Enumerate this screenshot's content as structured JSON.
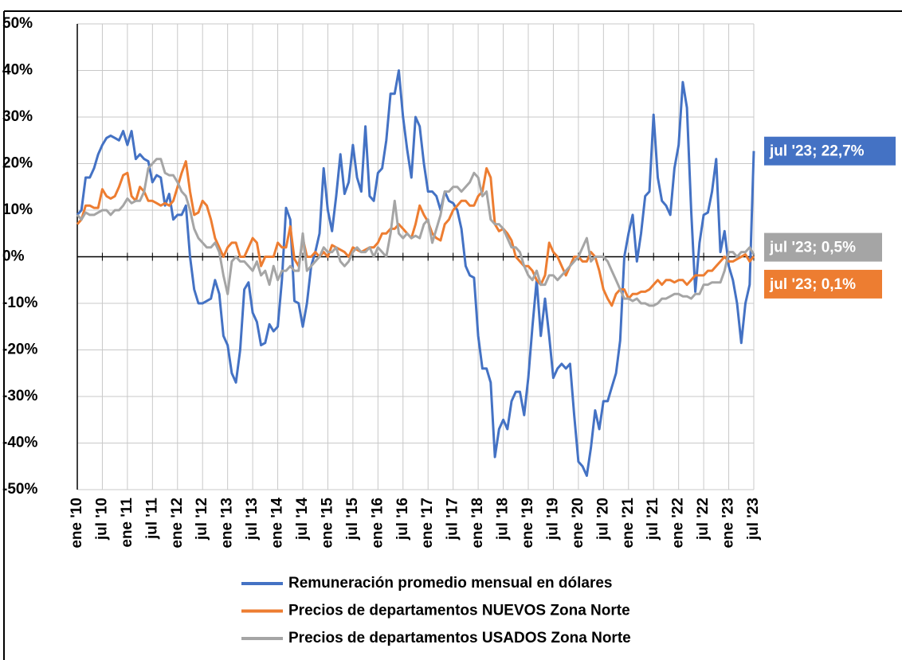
{
  "chart_data": {
    "type": "line",
    "categories": [
      "ene '10",
      null,
      null,
      null,
      null,
      null,
      "jul '10",
      null,
      null,
      null,
      null,
      null,
      "ene '11",
      null,
      null,
      null,
      null,
      null,
      "jul '11",
      null,
      null,
      null,
      null,
      null,
      "ene '12",
      null,
      null,
      null,
      null,
      null,
      "jul '12",
      null,
      null,
      null,
      null,
      null,
      "ene '13",
      null,
      null,
      null,
      null,
      null,
      "jul '13",
      null,
      null,
      null,
      null,
      null,
      "ene '14",
      null,
      null,
      null,
      null,
      null,
      "jul '14",
      null,
      null,
      null,
      null,
      null,
      "ene '15",
      null,
      null,
      null,
      null,
      null,
      "jul '15",
      null,
      null,
      null,
      null,
      null,
      "ene '16",
      null,
      null,
      null,
      null,
      null,
      "jul '16",
      null,
      null,
      null,
      null,
      null,
      "ene '17",
      null,
      null,
      null,
      null,
      null,
      "jul '17",
      null,
      null,
      null,
      null,
      null,
      "ene '18",
      null,
      null,
      null,
      null,
      null,
      "jul '18",
      null,
      null,
      null,
      null,
      null,
      "ene '19",
      null,
      null,
      null,
      null,
      null,
      "jul '19",
      null,
      null,
      null,
      null,
      null,
      "ene '20",
      null,
      null,
      null,
      null,
      null,
      "jul '20",
      null,
      null,
      null,
      null,
      null,
      "ene '21",
      null,
      null,
      null,
      null,
      null,
      "jul '21",
      null,
      null,
      null,
      null,
      null,
      "ene '22",
      null,
      null,
      null,
      null,
      null,
      "jul '22",
      null,
      null,
      null,
      null,
      null,
      "ene '23",
      null,
      null,
      null,
      null,
      null,
      "jul '23"
    ],
    "series": [
      {
        "name": "Remuneración promedio mensual en dólares",
        "color": "#4472c4",
        "label": "jul '23; 22,7%",
        "values": [
          9,
          10,
          17,
          17,
          19,
          22,
          24,
          25.5,
          26,
          25.5,
          25,
          27,
          24,
          27,
          21,
          22,
          21,
          20.5,
          16,
          17.5,
          17,
          11,
          13.5,
          8,
          9,
          9,
          11,
          0,
          -7,
          -10,
          -10,
          -9.5,
          -9,
          -5,
          -8,
          -17,
          -19,
          -25,
          -27,
          -20,
          -7,
          -5.5,
          -12,
          -14,
          -19,
          -18.5,
          -14.5,
          -16,
          -15,
          -5,
          10.5,
          8,
          -9.5,
          -10,
          -15,
          -10,
          -2,
          1,
          5,
          19,
          10,
          5.5,
          13,
          22,
          13.5,
          16,
          24,
          17,
          14,
          28,
          13,
          12,
          18,
          19,
          25,
          35,
          35,
          40,
          30,
          23,
          17,
          30,
          28,
          20,
          14,
          14,
          13,
          10,
          14,
          12,
          11.5,
          10,
          6,
          -2,
          -4,
          -4.5,
          -17,
          -24,
          -24,
          -27,
          -43,
          -37,
          -35,
          -37,
          -31,
          -29,
          -29,
          -34,
          -26,
          -15,
          -5,
          -17,
          -9,
          -17,
          -26,
          -24,
          -23,
          -24,
          -23,
          -34,
          -44,
          -45,
          -47,
          -41,
          -33,
          -37,
          -31,
          -31,
          -28,
          -25,
          -18,
          0,
          5,
          9,
          -1,
          5,
          13,
          14,
          30.5,
          17,
          12,
          11,
          9,
          19,
          24,
          37.5,
          32,
          10,
          -7.5,
          3,
          9,
          9.5,
          14,
          21,
          1,
          5.5,
          -2,
          -5,
          -10,
          -18.5,
          -10,
          -6,
          22.7
        ]
      },
      {
        "name": "Precios de departamentos NUEVOS Zona Norte",
        "color": "#ed7d31",
        "label": "jul '23; 0,1%",
        "values": [
          7,
          8,
          11,
          11,
          10.5,
          10.5,
          14.5,
          13,
          12.5,
          13,
          15,
          17.5,
          18,
          13,
          12,
          15,
          14,
          12,
          12,
          11.5,
          11,
          11.5,
          11,
          12,
          15,
          18,
          20.5,
          14,
          9,
          9.5,
          12,
          11,
          8,
          4,
          2,
          0,
          2,
          3,
          3,
          0,
          0,
          2,
          4,
          3,
          -2,
          0,
          0,
          0,
          3,
          2,
          2,
          6.5,
          -0.5,
          -2,
          4,
          0,
          0,
          1,
          0,
          1,
          0,
          2.5,
          2,
          1.5,
          1,
          0,
          2,
          1.5,
          1,
          1.5,
          2,
          2,
          3,
          5,
          5,
          6,
          6,
          7,
          6,
          5,
          4,
          7,
          11,
          9,
          7.5,
          5,
          4,
          3.5,
          7,
          8,
          10,
          11,
          12,
          12,
          11,
          11,
          13,
          14,
          19,
          17,
          7,
          5.5,
          6,
          5,
          3.5,
          0,
          -1,
          -2,
          -2,
          -3,
          -5,
          -6,
          -4,
          3,
          1,
          0,
          -2,
          -4,
          -2,
          0,
          0,
          -1,
          -1,
          1,
          0,
          -3,
          -7,
          -9,
          -10.5,
          -8,
          -7,
          -7,
          -9,
          -8,
          -8,
          -7.5,
          -7.5,
          -7,
          -6,
          -5,
          -6,
          -5,
          -5,
          -5.5,
          -5,
          -5,
          -6,
          -5,
          -4,
          -4,
          -4,
          -3,
          -3,
          -2,
          -1,
          0,
          -1,
          -1,
          -0.5,
          0,
          0.5,
          -1,
          0.1
        ]
      },
      {
        "name": "Precios de departamentos USADOS Zona Norte",
        "color": "#a5a5a5",
        "label": "jul '23; 0,5%",
        "values": [
          9,
          8,
          9.5,
          9,
          9,
          9.5,
          10,
          10,
          9,
          10,
          10,
          11,
          12.5,
          11.5,
          12,
          12,
          14,
          19,
          20,
          21,
          21,
          18,
          17.5,
          17.5,
          16,
          14,
          13,
          10,
          6,
          4,
          3,
          2,
          2,
          3,
          1,
          -4,
          -8,
          -1,
          0,
          -1,
          -1,
          -2,
          -3,
          -1,
          -4,
          -3,
          -6,
          -2,
          -5,
          -3,
          -3,
          -2,
          -3,
          -3,
          5,
          -3,
          -2,
          -1,
          0,
          2,
          1,
          1,
          2,
          -1,
          -2,
          -1,
          1,
          2,
          1,
          1,
          2,
          0,
          2,
          1,
          0,
          5,
          12,
          5,
          4,
          5,
          4,
          4.5,
          4,
          7,
          8,
          3,
          6,
          9,
          14,
          14,
          15,
          15,
          14,
          15,
          16,
          18,
          17,
          13,
          14,
          8,
          7,
          7,
          6,
          4,
          2,
          2,
          1,
          -2,
          -4,
          -5,
          -3,
          -6,
          -6,
          -4,
          -4,
          -5,
          -4,
          -3,
          -2,
          -1,
          0,
          2,
          4,
          -1,
          0,
          0,
          0,
          -1,
          -3,
          -5,
          -7,
          -9,
          -9,
          -9.5,
          -9,
          -10,
          -10,
          -10.5,
          -10.5,
          -10,
          -9,
          -9,
          -8.5,
          -8,
          -8,
          -8.5,
          -8.5,
          -9,
          -8,
          -8,
          -6,
          -6,
          -5.5,
          -5.5,
          -5.5,
          -3,
          1,
          1,
          0,
          1,
          1,
          2,
          0.5
        ]
      }
    ],
    "ylim": [
      -50,
      50
    ],
    "yticks": [
      {
        "value": -50,
        "label": "-50%"
      },
      {
        "value": -40,
        "label": "-40%"
      },
      {
        "value": -30,
        "label": "-30%"
      },
      {
        "value": -20,
        "label": "-20%"
      },
      {
        "value": -10,
        "label": "-10%"
      },
      {
        "value": 0,
        "label": "0%"
      },
      {
        "value": 10,
        "label": "10%"
      },
      {
        "value": 20,
        "label": "20%"
      },
      {
        "value": 30,
        "label": "30%"
      },
      {
        "value": 40,
        "label": "40%"
      },
      {
        "value": 50,
        "label": "50%"
      }
    ],
    "grid": true,
    "legend": "bottom"
  }
}
